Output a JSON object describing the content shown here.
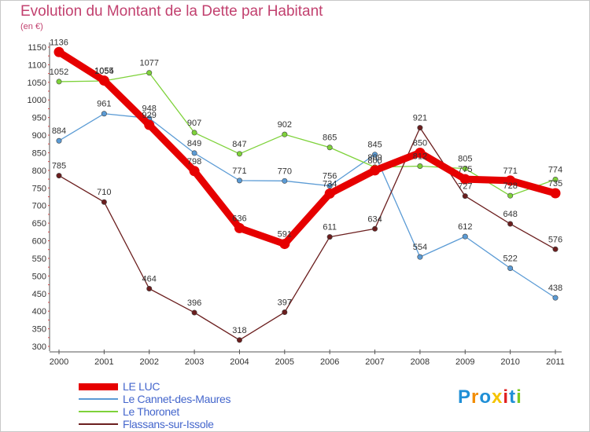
{
  "chart_data": {
    "type": "line",
    "title": "Evolution du Montant de la Dette par Habitant",
    "unit_label": "(en €)",
    "x": [
      "2000",
      "2001",
      "2002",
      "2003",
      "2004",
      "2005",
      "2006",
      "2007",
      "2008",
      "2009",
      "2010",
      "2011"
    ],
    "ylim": [
      300,
      1150
    ],
    "yticks": [
      300,
      350,
      400,
      450,
      500,
      550,
      600,
      650,
      700,
      750,
      800,
      850,
      900,
      950,
      1000,
      1050,
      1100,
      1150
    ],
    "grid": false,
    "legend_position": "bottom-left",
    "series": [
      {
        "name": "LE LUC",
        "color": "#e60000",
        "values": [
          1136,
          1055,
          929,
          798,
          636,
          591,
          734,
          800,
          850,
          775,
          771,
          735
        ]
      },
      {
        "name": "Le Cannet-des-Maures",
        "color": "#5b9bd5",
        "values": [
          884,
          961,
          948,
          849,
          771,
          770,
          756,
          845,
          554,
          612,
          522,
          438
        ]
      },
      {
        "name": "Le Thoronet",
        "color": "#7ed23a",
        "values": [
          1052,
          1054,
          1077,
          907,
          847,
          902,
          865,
          809,
          812,
          805,
          728,
          774
        ]
      },
      {
        "name": "Flassans-sur-Issole",
        "color": "#6b1e1e",
        "values": [
          785,
          710,
          464,
          396,
          318,
          397,
          611,
          634,
          921,
          727,
          648,
          576
        ]
      }
    ]
  },
  "logo": {
    "letters": [
      "P",
      "r",
      "o",
      "x",
      "i",
      "t",
      "i"
    ],
    "colors": [
      "#1f8fd6",
      "#f28c00",
      "#1f8fd6",
      "#f5c400",
      "#e02020",
      "#1f8fd6",
      "#7ec820"
    ]
  }
}
